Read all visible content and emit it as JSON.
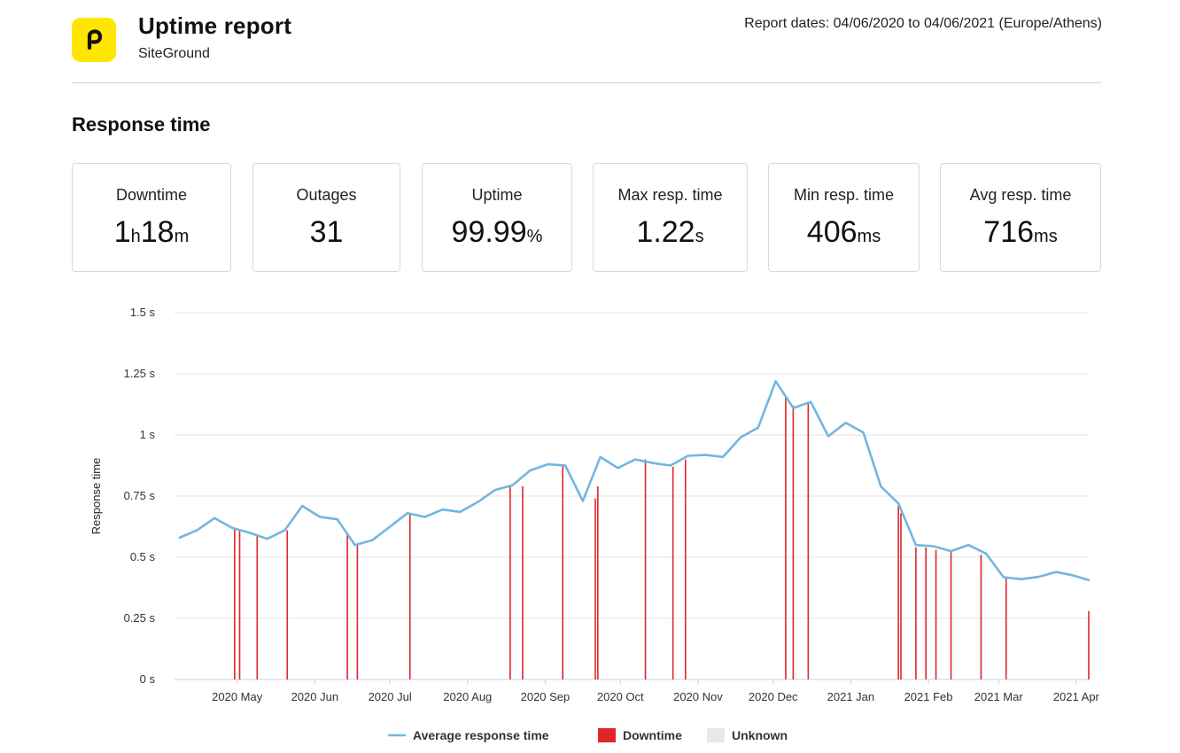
{
  "header": {
    "title": "Uptime report",
    "subtitle": "SiteGround",
    "report_dates": "Report dates: 04/06/2020 to 04/06/2021 (Europe/Athens)",
    "logo_icon": "pingdom-p-icon",
    "logo_color": "#ffe600"
  },
  "section_title": "Response time",
  "stats": [
    {
      "label": "Downtime",
      "value_parts": [
        {
          "t": "1",
          "big": true
        },
        {
          "t": "h",
          "big": false
        },
        {
          "t": "18",
          "big": true
        },
        {
          "t": "m",
          "big": false
        }
      ]
    },
    {
      "label": "Outages",
      "value_parts": [
        {
          "t": "31",
          "big": true
        }
      ]
    },
    {
      "label": "Uptime",
      "value_parts": [
        {
          "t": "99.99",
          "big": true
        },
        {
          "t": "%",
          "big": false
        }
      ]
    },
    {
      "label": "Max resp. time",
      "value_parts": [
        {
          "t": "1.22",
          "big": true
        },
        {
          "t": "s",
          "big": false
        }
      ]
    },
    {
      "label": "Min resp. time",
      "value_parts": [
        {
          "t": "406",
          "big": true
        },
        {
          "t": "ms",
          "big": false
        }
      ]
    },
    {
      "label": "Avg resp. time",
      "value_parts": [
        {
          "t": "716",
          "big": true
        },
        {
          "t": "ms",
          "big": false
        }
      ]
    }
  ],
  "chart_data": {
    "type": "line",
    "title": "",
    "ylabel": "Response time",
    "xlabel": "",
    "ylim": [
      0,
      1.5
    ],
    "yticks": [
      {
        "value": 0,
        "label": "0 s"
      },
      {
        "value": 0.25,
        "label": "0.25 s"
      },
      {
        "value": 0.5,
        "label": "0.5 s"
      },
      {
        "value": 0.75,
        "label": "0.75 s"
      },
      {
        "value": 1,
        "label": "1 s"
      },
      {
        "value": 1.25,
        "label": "1.25 s"
      },
      {
        "value": 1.5,
        "label": "1.5 s"
      }
    ],
    "xlim": [
      "2020-04-06",
      "2021-04-06"
    ],
    "xticks": [
      {
        "date": "2020-05-01",
        "label": "2020 May"
      },
      {
        "date": "2020-06-01",
        "label": "2020 Jun"
      },
      {
        "date": "2020-07-01",
        "label": "2020 Jul"
      },
      {
        "date": "2020-08-01",
        "label": "2020 Aug"
      },
      {
        "date": "2020-09-01",
        "label": "2020 Sep"
      },
      {
        "date": "2020-10-01",
        "label": "2020 Oct"
      },
      {
        "date": "2020-11-01",
        "label": "2020 Nov"
      },
      {
        "date": "2020-12-01",
        "label": "2020 Dec"
      },
      {
        "date": "2021-01-01",
        "label": "2021 Jan"
      },
      {
        "date": "2021-02-01",
        "label": "2021 Feb"
      },
      {
        "date": "2021-03-01",
        "label": "2021 Mar"
      },
      {
        "date": "2021-04-01",
        "label": "2021 Apr"
      }
    ],
    "series": [
      {
        "name": "Average response time",
        "color": "#72b6e0",
        "points": [
          {
            "x": "2020-04-08",
            "y": 0.58
          },
          {
            "x": "2020-04-15",
            "y": 0.61
          },
          {
            "x": "2020-04-22",
            "y": 0.66
          },
          {
            "x": "2020-04-29",
            "y": 0.62
          },
          {
            "x": "2020-05-06",
            "y": 0.6
          },
          {
            "x": "2020-05-13",
            "y": 0.575
          },
          {
            "x": "2020-05-20",
            "y": 0.61
          },
          {
            "x": "2020-05-27",
            "y": 0.71
          },
          {
            "x": "2020-06-03",
            "y": 0.665
          },
          {
            "x": "2020-06-10",
            "y": 0.655
          },
          {
            "x": "2020-06-17",
            "y": 0.55
          },
          {
            "x": "2020-06-24",
            "y": 0.57
          },
          {
            "x": "2020-07-01",
            "y": 0.625
          },
          {
            "x": "2020-07-08",
            "y": 0.68
          },
          {
            "x": "2020-07-15",
            "y": 0.665
          },
          {
            "x": "2020-07-22",
            "y": 0.695
          },
          {
            "x": "2020-07-29",
            "y": 0.685
          },
          {
            "x": "2020-08-05",
            "y": 0.725
          },
          {
            "x": "2020-08-12",
            "y": 0.775
          },
          {
            "x": "2020-08-19",
            "y": 0.795
          },
          {
            "x": "2020-08-26",
            "y": 0.855
          },
          {
            "x": "2020-09-02",
            "y": 0.88
          },
          {
            "x": "2020-09-09",
            "y": 0.875
          },
          {
            "x": "2020-09-16",
            "y": 0.73
          },
          {
            "x": "2020-09-23",
            "y": 0.91
          },
          {
            "x": "2020-09-30",
            "y": 0.865
          },
          {
            "x": "2020-10-07",
            "y": 0.9
          },
          {
            "x": "2020-10-14",
            "y": 0.885
          },
          {
            "x": "2020-10-21",
            "y": 0.875
          },
          {
            "x": "2020-10-28",
            "y": 0.915
          },
          {
            "x": "2020-11-04",
            "y": 0.918
          },
          {
            "x": "2020-11-11",
            "y": 0.91
          },
          {
            "x": "2020-11-18",
            "y": 0.99
          },
          {
            "x": "2020-11-25",
            "y": 1.03
          },
          {
            "x": "2020-12-02",
            "y": 1.22
          },
          {
            "x": "2020-12-09",
            "y": 1.11
          },
          {
            "x": "2020-12-16",
            "y": 1.135
          },
          {
            "x": "2020-12-23",
            "y": 0.995
          },
          {
            "x": "2020-12-30",
            "y": 1.05
          },
          {
            "x": "2021-01-06",
            "y": 1.01
          },
          {
            "x": "2021-01-13",
            "y": 0.79
          },
          {
            "x": "2021-01-20",
            "y": 0.72
          },
          {
            "x": "2021-01-27",
            "y": 0.55
          },
          {
            "x": "2021-02-03",
            "y": 0.545
          },
          {
            "x": "2021-02-10",
            "y": 0.525
          },
          {
            "x": "2021-02-17",
            "y": 0.55
          },
          {
            "x": "2021-02-24",
            "y": 0.515
          },
          {
            "x": "2021-03-03",
            "y": 0.418
          },
          {
            "x": "2021-03-10",
            "y": 0.41
          },
          {
            "x": "2021-03-17",
            "y": 0.42
          },
          {
            "x": "2021-03-24",
            "y": 0.44
          },
          {
            "x": "2021-03-31",
            "y": 0.425
          },
          {
            "x": "2021-04-06",
            "y": 0.406
          }
        ]
      }
    ],
    "downtime": {
      "name": "Downtime",
      "color": "#e0262b",
      "events": [
        {
          "x": "2020-04-30",
          "y": 0.62
        },
        {
          "x": "2020-05-02",
          "y": 0.615
        },
        {
          "x": "2020-05-09",
          "y": 0.59
        },
        {
          "x": "2020-05-21",
          "y": 0.61
        },
        {
          "x": "2020-06-14",
          "y": 0.6
        },
        {
          "x": "2020-06-18",
          "y": 0.55
        },
        {
          "x": "2020-07-09",
          "y": 0.68
        },
        {
          "x": "2020-08-18",
          "y": 0.79
        },
        {
          "x": "2020-08-23",
          "y": 0.79
        },
        {
          "x": "2020-09-08",
          "y": 0.88
        },
        {
          "x": "2020-09-21",
          "y": 0.74
        },
        {
          "x": "2020-09-22",
          "y": 0.79
        },
        {
          "x": "2020-10-11",
          "y": 0.9
        },
        {
          "x": "2020-10-22",
          "y": 0.87
        },
        {
          "x": "2020-10-27",
          "y": 0.9
        },
        {
          "x": "2020-12-06",
          "y": 1.16
        },
        {
          "x": "2020-12-09",
          "y": 1.12
        },
        {
          "x": "2020-12-15",
          "y": 1.13
        },
        {
          "x": "2021-01-20",
          "y": 0.71
        },
        {
          "x": "2021-01-21",
          "y": 0.68
        },
        {
          "x": "2021-01-27",
          "y": 0.54
        },
        {
          "x": "2021-01-31",
          "y": 0.54
        },
        {
          "x": "2021-02-04",
          "y": 0.53
        },
        {
          "x": "2021-02-10",
          "y": 0.53
        },
        {
          "x": "2021-02-22",
          "y": 0.51
        },
        {
          "x": "2021-03-04",
          "y": 0.42
        },
        {
          "x": "2021-04-06",
          "y": 0.28
        }
      ]
    },
    "legend": [
      {
        "label": "Average response time",
        "kind": "line",
        "color": "#72b6e0"
      },
      {
        "label": "Downtime",
        "kind": "box",
        "color": "#e0262b"
      },
      {
        "label": "Unknown",
        "kind": "box",
        "color": "#e8e8e8"
      }
    ],
    "legend_position": "bottom-center",
    "grid": true
  }
}
